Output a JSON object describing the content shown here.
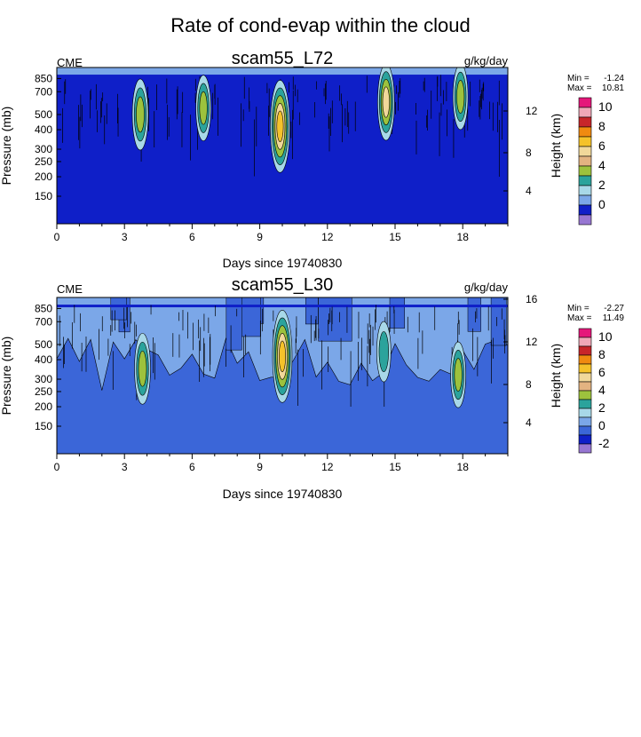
{
  "title": "Rate of cond-evap within the cloud",
  "chart_data": [
    {
      "type": "heatmap",
      "id": "panel1",
      "title": "scam55_L72",
      "left_label": "CME",
      "units": "g/kg/day",
      "xlabel": "Days since 19740830",
      "ylabel": "Pressure (mb)",
      "ylabel_right": "Height (km)",
      "xlim": [
        0,
        20
      ],
      "ylim": [
        1000,
        100
      ],
      "x_ticks": [
        0,
        3,
        6,
        9,
        12,
        15,
        18
      ],
      "y_ticks": [
        150,
        200,
        250,
        300,
        400,
        500,
        700,
        850
      ],
      "height_ticks": [
        4,
        8,
        12
      ],
      "stats": {
        "min_label": "Min =",
        "min": "-1.24",
        "max_label": "Max =",
        "max": "10.81"
      },
      "legend": {
        "colors": [
          "#e5177a",
          "#f0a8b8",
          "#c8262a",
          "#f08a10",
          "#f5c22a",
          "#f1d89a",
          "#e3b381",
          "#9dc23d",
          "#2ba39c",
          "#a8d8e8",
          "#7ba7e8",
          "#0f1fc8",
          "#9777d2"
        ],
        "labels": [
          "10",
          "8",
          "6",
          "4",
          "2",
          "0"
        ]
      },
      "features": [
        {
          "day": 3.7,
          "p": 500,
          "strength": 0.6
        },
        {
          "day": 6.5,
          "p": 550,
          "strength": 0.5
        },
        {
          "day": 9.9,
          "p": 420,
          "strength": 1.0
        },
        {
          "day": 14.6,
          "p": 600,
          "strength": 0.7
        },
        {
          "day": 17.9,
          "p": 650,
          "strength": 0.5
        }
      ]
    },
    {
      "type": "heatmap",
      "id": "panel2",
      "title": "scam55_L30",
      "left_label": "CME",
      "units": "g/kg/day",
      "xlabel": "Days since 19740830",
      "ylabel": "Pressure (mb)",
      "ylabel_right": "Height (km)",
      "xlim": [
        0,
        20
      ],
      "ylim": [
        1000,
        100
      ],
      "x_ticks": [
        0,
        3,
        6,
        9,
        12,
        15,
        18
      ],
      "y_ticks": [
        150,
        200,
        250,
        300,
        400,
        500,
        700,
        850
      ],
      "height_ticks": [
        4,
        8,
        12,
        16
      ],
      "stats": {
        "min_label": "Min =",
        "min": "-2.27",
        "max_label": "Max =",
        "max": "11.49"
      },
      "legend": {
        "colors": [
          "#e5177a",
          "#f0a8b8",
          "#c8262a",
          "#f08a10",
          "#f5c22a",
          "#f1d89a",
          "#e3b381",
          "#9dc23d",
          "#2ba39c",
          "#a8d8e8",
          "#7ba7e8",
          "#3b66d8",
          "#0f1fc8",
          "#9777d2"
        ],
        "labels": [
          "10",
          "8",
          "6",
          "4",
          "2",
          "0",
          "-2"
        ]
      },
      "features": [
        {
          "day": 3.8,
          "p": 350,
          "strength": 0.6
        },
        {
          "day": 10.0,
          "p": 420,
          "strength": 1.0
        },
        {
          "day": 14.5,
          "p": 450,
          "strength": 0.4
        },
        {
          "day": 17.8,
          "p": 320,
          "strength": 0.5
        }
      ]
    }
  ]
}
